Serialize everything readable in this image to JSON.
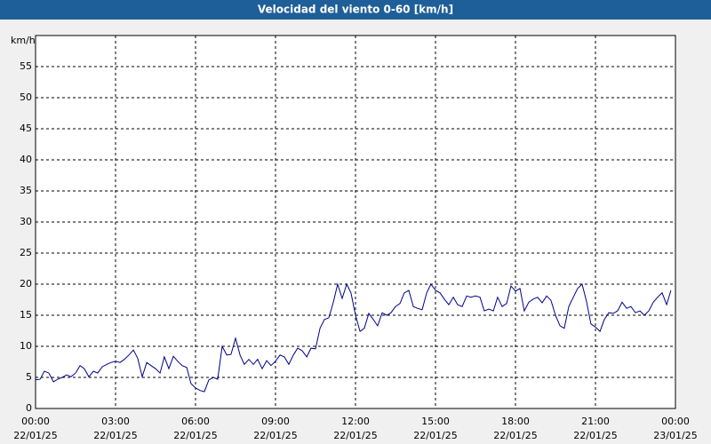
{
  "chart_data": {
    "type": "line",
    "title": "Velocidad del viento 0-60 [km/h]",
    "y_label": "km/h",
    "x": [
      0,
      0.17,
      0.33,
      0.5,
      0.67,
      0.83,
      1,
      1.17,
      1.33,
      1.5,
      1.67,
      1.83,
      2,
      2.17,
      2.33,
      2.5,
      2.67,
      2.83,
      3,
      3.17,
      3.33,
      3.5,
      3.67,
      3.83,
      4,
      4.17,
      4.33,
      4.5,
      4.67,
      4.83,
      5,
      5.17,
      5.33,
      5.5,
      5.67,
      5.83,
      6,
      6.17,
      6.33,
      6.5,
      6.67,
      6.83,
      7,
      7.17,
      7.33,
      7.5,
      7.67,
      7.83,
      8,
      8.17,
      8.33,
      8.5,
      8.67,
      8.83,
      9,
      9.17,
      9.33,
      9.5,
      9.67,
      9.83,
      10,
      10.17,
      10.33,
      10.5,
      10.67,
      10.83,
      11,
      11.17,
      11.33,
      11.5,
      11.67,
      11.83,
      12,
      12.17,
      12.33,
      12.5,
      12.67,
      12.83,
      13,
      13.17,
      13.33,
      13.5,
      13.67,
      13.83,
      14,
      14.17,
      14.33,
      14.5,
      14.67,
      14.83,
      15,
      15.17,
      15.33,
      15.5,
      15.67,
      15.83,
      16,
      16.17,
      16.33,
      16.5,
      16.67,
      16.83,
      17,
      17.17,
      17.33,
      17.5,
      17.67,
      17.83,
      18,
      18.17,
      18.33,
      18.5,
      18.67,
      18.83,
      19,
      19.17,
      19.33,
      19.5,
      19.67,
      19.83,
      20,
      20.17,
      20.33,
      20.5,
      20.67,
      20.83,
      21,
      21.17,
      21.33,
      21.5,
      21.67,
      21.83,
      22,
      22.17,
      22.33,
      22.5,
      22.67,
      22.83,
      23,
      23.17,
      23.33,
      23.5,
      23.67,
      23.83
    ],
    "series": [
      {
        "name": "Velocidad del viento",
        "color": "#00008b",
        "values": [
          4.6,
          4.7,
          6,
          5.7,
          4.3,
          4.7,
          5,
          5.4,
          5.1,
          5.7,
          6.9,
          6.4,
          5.1,
          6,
          5.7,
          6.7,
          7.1,
          7.4,
          7.6,
          7.4,
          7.9,
          8.6,
          9.4,
          8.1,
          5.1,
          7.4,
          6.9,
          6.4,
          5.7,
          8.3,
          6.4,
          8.4,
          7.6,
          6.9,
          6.6,
          4,
          3.3,
          2.9,
          2.7,
          4.6,
          5,
          4.7,
          10,
          8.6,
          8.7,
          11.3,
          8.6,
          7.1,
          7.9,
          7.1,
          7.9,
          6.4,
          7.7,
          6.9,
          7.6,
          8.6,
          8.3,
          7.1,
          8.6,
          9.7,
          9.3,
          8.3,
          9.7,
          9.6,
          12.9,
          14.3,
          14.6,
          17.1,
          20,
          17.7,
          20,
          18.6,
          15,
          12.4,
          12.9,
          15.3,
          14.3,
          13.3,
          15.4,
          15,
          15.4,
          16.4,
          16.9,
          18.6,
          19,
          16.4,
          16.1,
          15.9,
          18.6,
          20,
          19,
          18.6,
          17.6,
          16.7,
          17.9,
          16.7,
          16.4,
          18.1,
          17.9,
          18.1,
          17.9,
          15.7,
          16,
          15.7,
          17.9,
          16.4,
          16.9,
          19.7,
          18.9,
          19.3,
          15.7,
          17.1,
          17.6,
          17.9,
          17,
          18.1,
          17.4,
          15,
          13.3,
          12.9,
          16.4,
          17.9,
          19.3,
          20,
          17.1,
          13.6,
          13.1,
          12.4,
          14.3,
          15.4,
          15.3,
          15.7,
          17.1,
          16.1,
          16.4,
          15.4,
          15.7,
          15,
          15.7,
          17.1,
          17.9,
          18.6,
          16.7,
          19
        ]
      }
    ],
    "xlim": [
      0,
      24
    ],
    "ylim": [
      0,
      60
    ],
    "xticks": [
      {
        "value": 0,
        "label": "00:00",
        "sublabel": "22/01/25"
      },
      {
        "value": 3,
        "label": "03:00",
        "sublabel": "22/01/25"
      },
      {
        "value": 6,
        "label": "06:00",
        "sublabel": "22/01/25"
      },
      {
        "value": 9,
        "label": "09:00",
        "sublabel": "22/01/25"
      },
      {
        "value": 12,
        "label": "12:00",
        "sublabel": "22/01/25"
      },
      {
        "value": 15,
        "label": "15:00",
        "sublabel": "22/01/25"
      },
      {
        "value": 18,
        "label": "18:00",
        "sublabel": "22/01/25"
      },
      {
        "value": 21,
        "label": "21:00",
        "sublabel": "22/01/25"
      },
      {
        "value": 24,
        "label": "00:00",
        "sublabel": "23/01/25"
      }
    ],
    "yticks": [
      0,
      5,
      10,
      15,
      20,
      25,
      30,
      35,
      40,
      45,
      50,
      55
    ],
    "grid": true
  }
}
